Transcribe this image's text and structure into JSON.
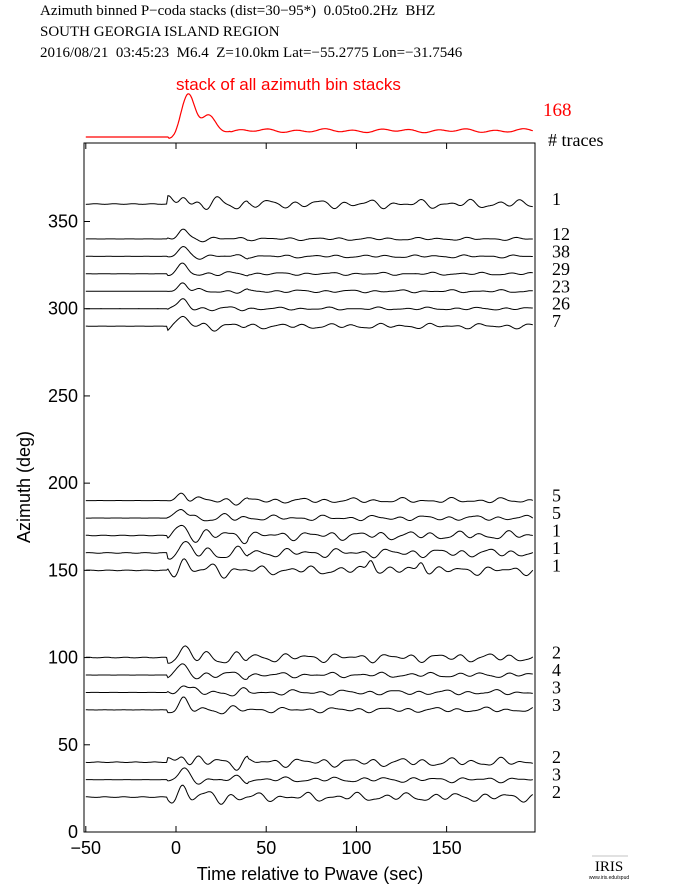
{
  "header": {
    "line1": "Azimuth binned P−coda stacks (dist=30−95*)  0.05to0.2Hz  BHZ",
    "line2": "SOUTH GEORGIA ISLAND REGION",
    "line3": "2016/08/21  03:45:23  M6.4  Z=10.0km Lat=−55.2775 Lon=−31.7546"
  },
  "stack": {
    "label": "stack of all azimuth bin stacks",
    "total_traces": "168",
    "color": "#ff0000"
  },
  "traces_header": "# traces",
  "logo": {
    "text": "IRIS",
    "url_text": "www.iris.edu/spud"
  },
  "chart_data": {
    "type": "line",
    "title": "Azimuth binned P-coda stacks",
    "xlabel": "Time relative to Pwave (sec)",
    "ylabel": "Azimuth (deg)",
    "xlim": [
      -51,
      199
    ],
    "ylim": [
      0,
      395
    ],
    "xticks": [
      -50,
      0,
      50,
      100,
      150
    ],
    "xtick_labels": [
      "−50",
      "0",
      "50",
      "100",
      "150"
    ],
    "yticks": [
      0,
      50,
      100,
      150,
      200,
      250,
      300,
      350
    ],
    "yticks_labels": [
      "0",
      "50",
      "100",
      "150",
      "200",
      "250",
      "300",
      "350"
    ],
    "series": [
      {
        "azimuth": 360,
        "traces": "1"
      },
      {
        "azimuth": 340,
        "traces": "12"
      },
      {
        "azimuth": 330,
        "traces": "38"
      },
      {
        "azimuth": 320,
        "traces": "29"
      },
      {
        "azimuth": 310,
        "traces": "23"
      },
      {
        "azimuth": 300,
        "traces": "26"
      },
      {
        "azimuth": 290,
        "traces": "7"
      },
      {
        "azimuth": 190,
        "traces": "5"
      },
      {
        "azimuth": 180,
        "traces": "5"
      },
      {
        "azimuth": 170,
        "traces": "1"
      },
      {
        "azimuth": 160,
        "traces": "1"
      },
      {
        "azimuth": 150,
        "traces": "1"
      },
      {
        "azimuth": 100,
        "traces": "2"
      },
      {
        "azimuth": 90,
        "traces": "4"
      },
      {
        "azimuth": 80,
        "traces": "3"
      },
      {
        "azimuth": 70,
        "traces": "3"
      },
      {
        "azimuth": 40,
        "traces": "2"
      },
      {
        "azimuth": 30,
        "traces": "3"
      },
      {
        "azimuth": 20,
        "traces": "2"
      }
    ]
  }
}
